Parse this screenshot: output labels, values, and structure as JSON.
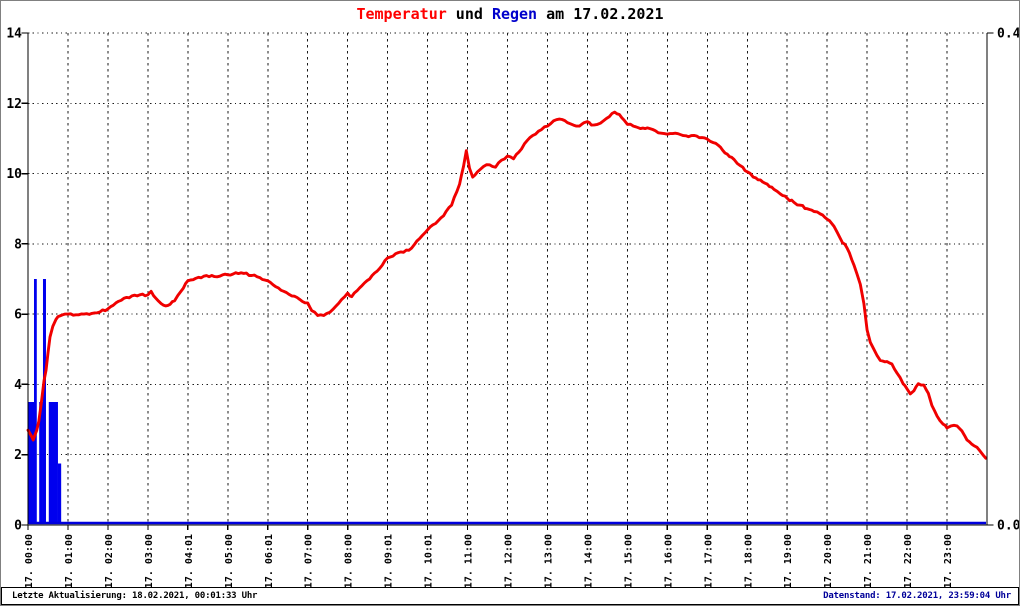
{
  "title": {
    "parts": [
      {
        "text": "Temperatur",
        "color": "#ff0000"
      },
      {
        "text": " und ",
        "color": "#000000"
      },
      {
        "text": "Regen",
        "color": "#0000cc"
      },
      {
        "text": " am 17.02.2021",
        "color": "#000000"
      }
    ]
  },
  "footer": {
    "left": "Letzte Aktualisierung: 18.02.2021, 00:01:33 Uhr",
    "left_color": "#000000",
    "right": "Datenstand: 17.02.2021, 23:59:04 Uhr",
    "right_color": "#000099"
  },
  "colors": {
    "temperature_line": "#f00000",
    "rain_bar": "#0000ee",
    "rain_zero_line": "#0000dd",
    "grid": "#1a1a1a",
    "axis": "#000000",
    "tick_label": "#000000",
    "background": "#ffffff",
    "outer_border": "#808080"
  },
  "chart_data": {
    "type": "line",
    "title": "Temperatur und Regen am 17.02.2021",
    "grid": true,
    "legend": "none (series named in title)",
    "x_axis": {
      "unit": "time",
      "range_hours": [
        0,
        24
      ],
      "tick_labels": [
        "17. 00:00",
        "17. 01:00",
        "17. 02:00",
        "17. 03:00",
        "17. 04:01",
        "17. 05:00",
        "17. 06:01",
        "17. 07:00",
        "17. 08:00",
        "17. 09:01",
        "17. 10:01",
        "17. 11:00",
        "17. 12:00",
        "17. 13:00",
        "17. 14:00",
        "17. 15:00",
        "17. 16:00",
        "17. 17:00",
        "17. 18:00",
        "17. 19:00",
        "17. 20:00",
        "17. 21:00",
        "17. 22:00",
        "17. 23:00"
      ]
    },
    "y_axis_left": {
      "series": "Temperatur",
      "range": [
        0,
        14
      ],
      "tick_values": [
        0,
        2,
        4,
        6,
        8,
        10,
        12,
        14
      ],
      "tick_labels": [
        "0",
        "2",
        "4",
        "6",
        "8",
        "10",
        "12",
        "14"
      ]
    },
    "y_axis_right": {
      "series": "Regen",
      "range": [
        0,
        0.4
      ],
      "tick_values": [
        0.0,
        0.4
      ],
      "tick_labels": [
        "0.0",
        "0.4"
      ]
    },
    "series": [
      {
        "name": "Temperatur",
        "type": "line",
        "axis": "left",
        "color": "#f00000",
        "points": [
          [
            0.0,
            2.7
          ],
          [
            0.05,
            2.6
          ],
          [
            0.1,
            2.5
          ],
          [
            0.13,
            2.42
          ],
          [
            0.17,
            2.55
          ],
          [
            0.22,
            2.7
          ],
          [
            0.27,
            2.95
          ],
          [
            0.33,
            3.45
          ],
          [
            0.4,
            4.1
          ],
          [
            0.45,
            4.4
          ],
          [
            0.5,
            4.9
          ],
          [
            0.55,
            5.35
          ],
          [
            0.62,
            5.65
          ],
          [
            0.7,
            5.85
          ],
          [
            0.8,
            5.95
          ],
          [
            0.92,
            6.0
          ],
          [
            1.0,
            6.0
          ],
          [
            1.2,
            5.98
          ],
          [
            1.4,
            6.0
          ],
          [
            1.6,
            6.02
          ],
          [
            1.8,
            6.06
          ],
          [
            2.0,
            6.15
          ],
          [
            2.2,
            6.32
          ],
          [
            2.4,
            6.45
          ],
          [
            2.6,
            6.52
          ],
          [
            2.8,
            6.55
          ],
          [
            3.0,
            6.55
          ],
          [
            3.08,
            6.65
          ],
          [
            3.2,
            6.45
          ],
          [
            3.33,
            6.3
          ],
          [
            3.5,
            6.25
          ],
          [
            3.67,
            6.38
          ],
          [
            3.83,
            6.65
          ],
          [
            4.0,
            6.95
          ],
          [
            4.2,
            7.02
          ],
          [
            4.4,
            7.08
          ],
          [
            4.6,
            7.1
          ],
          [
            4.8,
            7.08
          ],
          [
            5.0,
            7.12
          ],
          [
            5.2,
            7.18
          ],
          [
            5.4,
            7.16
          ],
          [
            5.6,
            7.1
          ],
          [
            5.8,
            7.04
          ],
          [
            6.0,
            6.95
          ],
          [
            6.2,
            6.78
          ],
          [
            6.4,
            6.65
          ],
          [
            6.6,
            6.52
          ],
          [
            6.8,
            6.42
          ],
          [
            7.0,
            6.32
          ],
          [
            7.1,
            6.1
          ],
          [
            7.25,
            5.96
          ],
          [
            7.4,
            5.96
          ],
          [
            7.55,
            6.05
          ],
          [
            7.7,
            6.22
          ],
          [
            7.85,
            6.42
          ],
          [
            8.0,
            6.6
          ],
          [
            8.1,
            6.5
          ],
          [
            8.3,
            6.75
          ],
          [
            8.55,
            7.0
          ],
          [
            8.8,
            7.3
          ],
          [
            9.0,
            7.6
          ],
          [
            9.2,
            7.72
          ],
          [
            9.4,
            7.76
          ],
          [
            9.6,
            7.88
          ],
          [
            9.8,
            8.15
          ],
          [
            10.0,
            8.4
          ],
          [
            10.2,
            8.58
          ],
          [
            10.4,
            8.8
          ],
          [
            10.6,
            9.1
          ],
          [
            10.8,
            9.7
          ],
          [
            10.9,
            10.2
          ],
          [
            10.97,
            10.65
          ],
          [
            11.05,
            10.15
          ],
          [
            11.13,
            9.9
          ],
          [
            11.25,
            10.05
          ],
          [
            11.4,
            10.2
          ],
          [
            11.55,
            10.25
          ],
          [
            11.7,
            10.18
          ],
          [
            11.85,
            10.38
          ],
          [
            12.0,
            10.5
          ],
          [
            12.15,
            10.42
          ],
          [
            12.35,
            10.7
          ],
          [
            12.5,
            10.95
          ],
          [
            12.7,
            11.12
          ],
          [
            12.85,
            11.25
          ],
          [
            13.0,
            11.35
          ],
          [
            13.15,
            11.5
          ],
          [
            13.3,
            11.55
          ],
          [
            13.5,
            11.45
          ],
          [
            13.65,
            11.38
          ],
          [
            13.8,
            11.35
          ],
          [
            13.92,
            11.45
          ],
          [
            14.0,
            11.48
          ],
          [
            14.1,
            11.38
          ],
          [
            14.25,
            11.4
          ],
          [
            14.4,
            11.5
          ],
          [
            14.55,
            11.62
          ],
          [
            14.68,
            11.75
          ],
          [
            14.8,
            11.68
          ],
          [
            14.92,
            11.52
          ],
          [
            15.0,
            11.4
          ],
          [
            15.15,
            11.35
          ],
          [
            15.33,
            11.28
          ],
          [
            15.5,
            11.3
          ],
          [
            15.7,
            11.22
          ],
          [
            15.85,
            11.15
          ],
          [
            16.0,
            11.12
          ],
          [
            16.2,
            11.15
          ],
          [
            16.4,
            11.08
          ],
          [
            16.6,
            11.08
          ],
          [
            16.8,
            11.02
          ],
          [
            17.0,
            10.98
          ],
          [
            17.15,
            10.88
          ],
          [
            17.33,
            10.75
          ],
          [
            17.5,
            10.55
          ],
          [
            17.67,
            10.4
          ],
          [
            17.83,
            10.22
          ],
          [
            18.0,
            10.05
          ],
          [
            18.15,
            9.9
          ],
          [
            18.33,
            9.82
          ],
          [
            18.5,
            9.7
          ],
          [
            18.67,
            9.55
          ],
          [
            18.83,
            9.42
          ],
          [
            19.0,
            9.3
          ],
          [
            19.17,
            9.18
          ],
          [
            19.33,
            9.1
          ],
          [
            19.5,
            9.0
          ],
          [
            19.67,
            8.92
          ],
          [
            19.83,
            8.85
          ],
          [
            20.0,
            8.7
          ],
          [
            20.17,
            8.5
          ],
          [
            20.33,
            8.15
          ],
          [
            20.5,
            7.88
          ],
          [
            20.67,
            7.4
          ],
          [
            20.83,
            6.85
          ],
          [
            20.92,
            6.3
          ],
          [
            21.0,
            5.55
          ],
          [
            21.08,
            5.2
          ],
          [
            21.17,
            5.0
          ],
          [
            21.33,
            4.68
          ],
          [
            21.5,
            4.65
          ],
          [
            21.62,
            4.58
          ],
          [
            21.75,
            4.32
          ],
          [
            21.9,
            4.02
          ],
          [
            22.0,
            3.87
          ],
          [
            22.08,
            3.73
          ],
          [
            22.17,
            3.82
          ],
          [
            22.28,
            4.02
          ],
          [
            22.42,
            3.98
          ],
          [
            22.53,
            3.75
          ],
          [
            22.62,
            3.4
          ],
          [
            22.75,
            3.1
          ],
          [
            22.9,
            2.87
          ],
          [
            23.0,
            2.76
          ],
          [
            23.1,
            2.82
          ],
          [
            23.25,
            2.82
          ],
          [
            23.37,
            2.68
          ],
          [
            23.5,
            2.42
          ],
          [
            23.67,
            2.26
          ],
          [
            23.83,
            2.1
          ],
          [
            23.97,
            1.9
          ]
        ]
      },
      {
        "name": "Regen",
        "type": "bar",
        "axis": "right",
        "color": "#0000ee",
        "baseline": 0,
        "segments_start_end_value": [
          [
            0.0,
            0.15,
            0.1
          ],
          [
            0.15,
            0.22,
            0.2
          ],
          [
            0.28,
            0.375,
            0.1
          ],
          [
            0.375,
            0.45,
            0.2
          ],
          [
            0.52,
            0.75,
            0.1
          ],
          [
            0.75,
            0.83,
            0.05
          ]
        ],
        "note_visible": "rain only between 00:00 and 00:50, zero line rest of day"
      }
    ]
  }
}
